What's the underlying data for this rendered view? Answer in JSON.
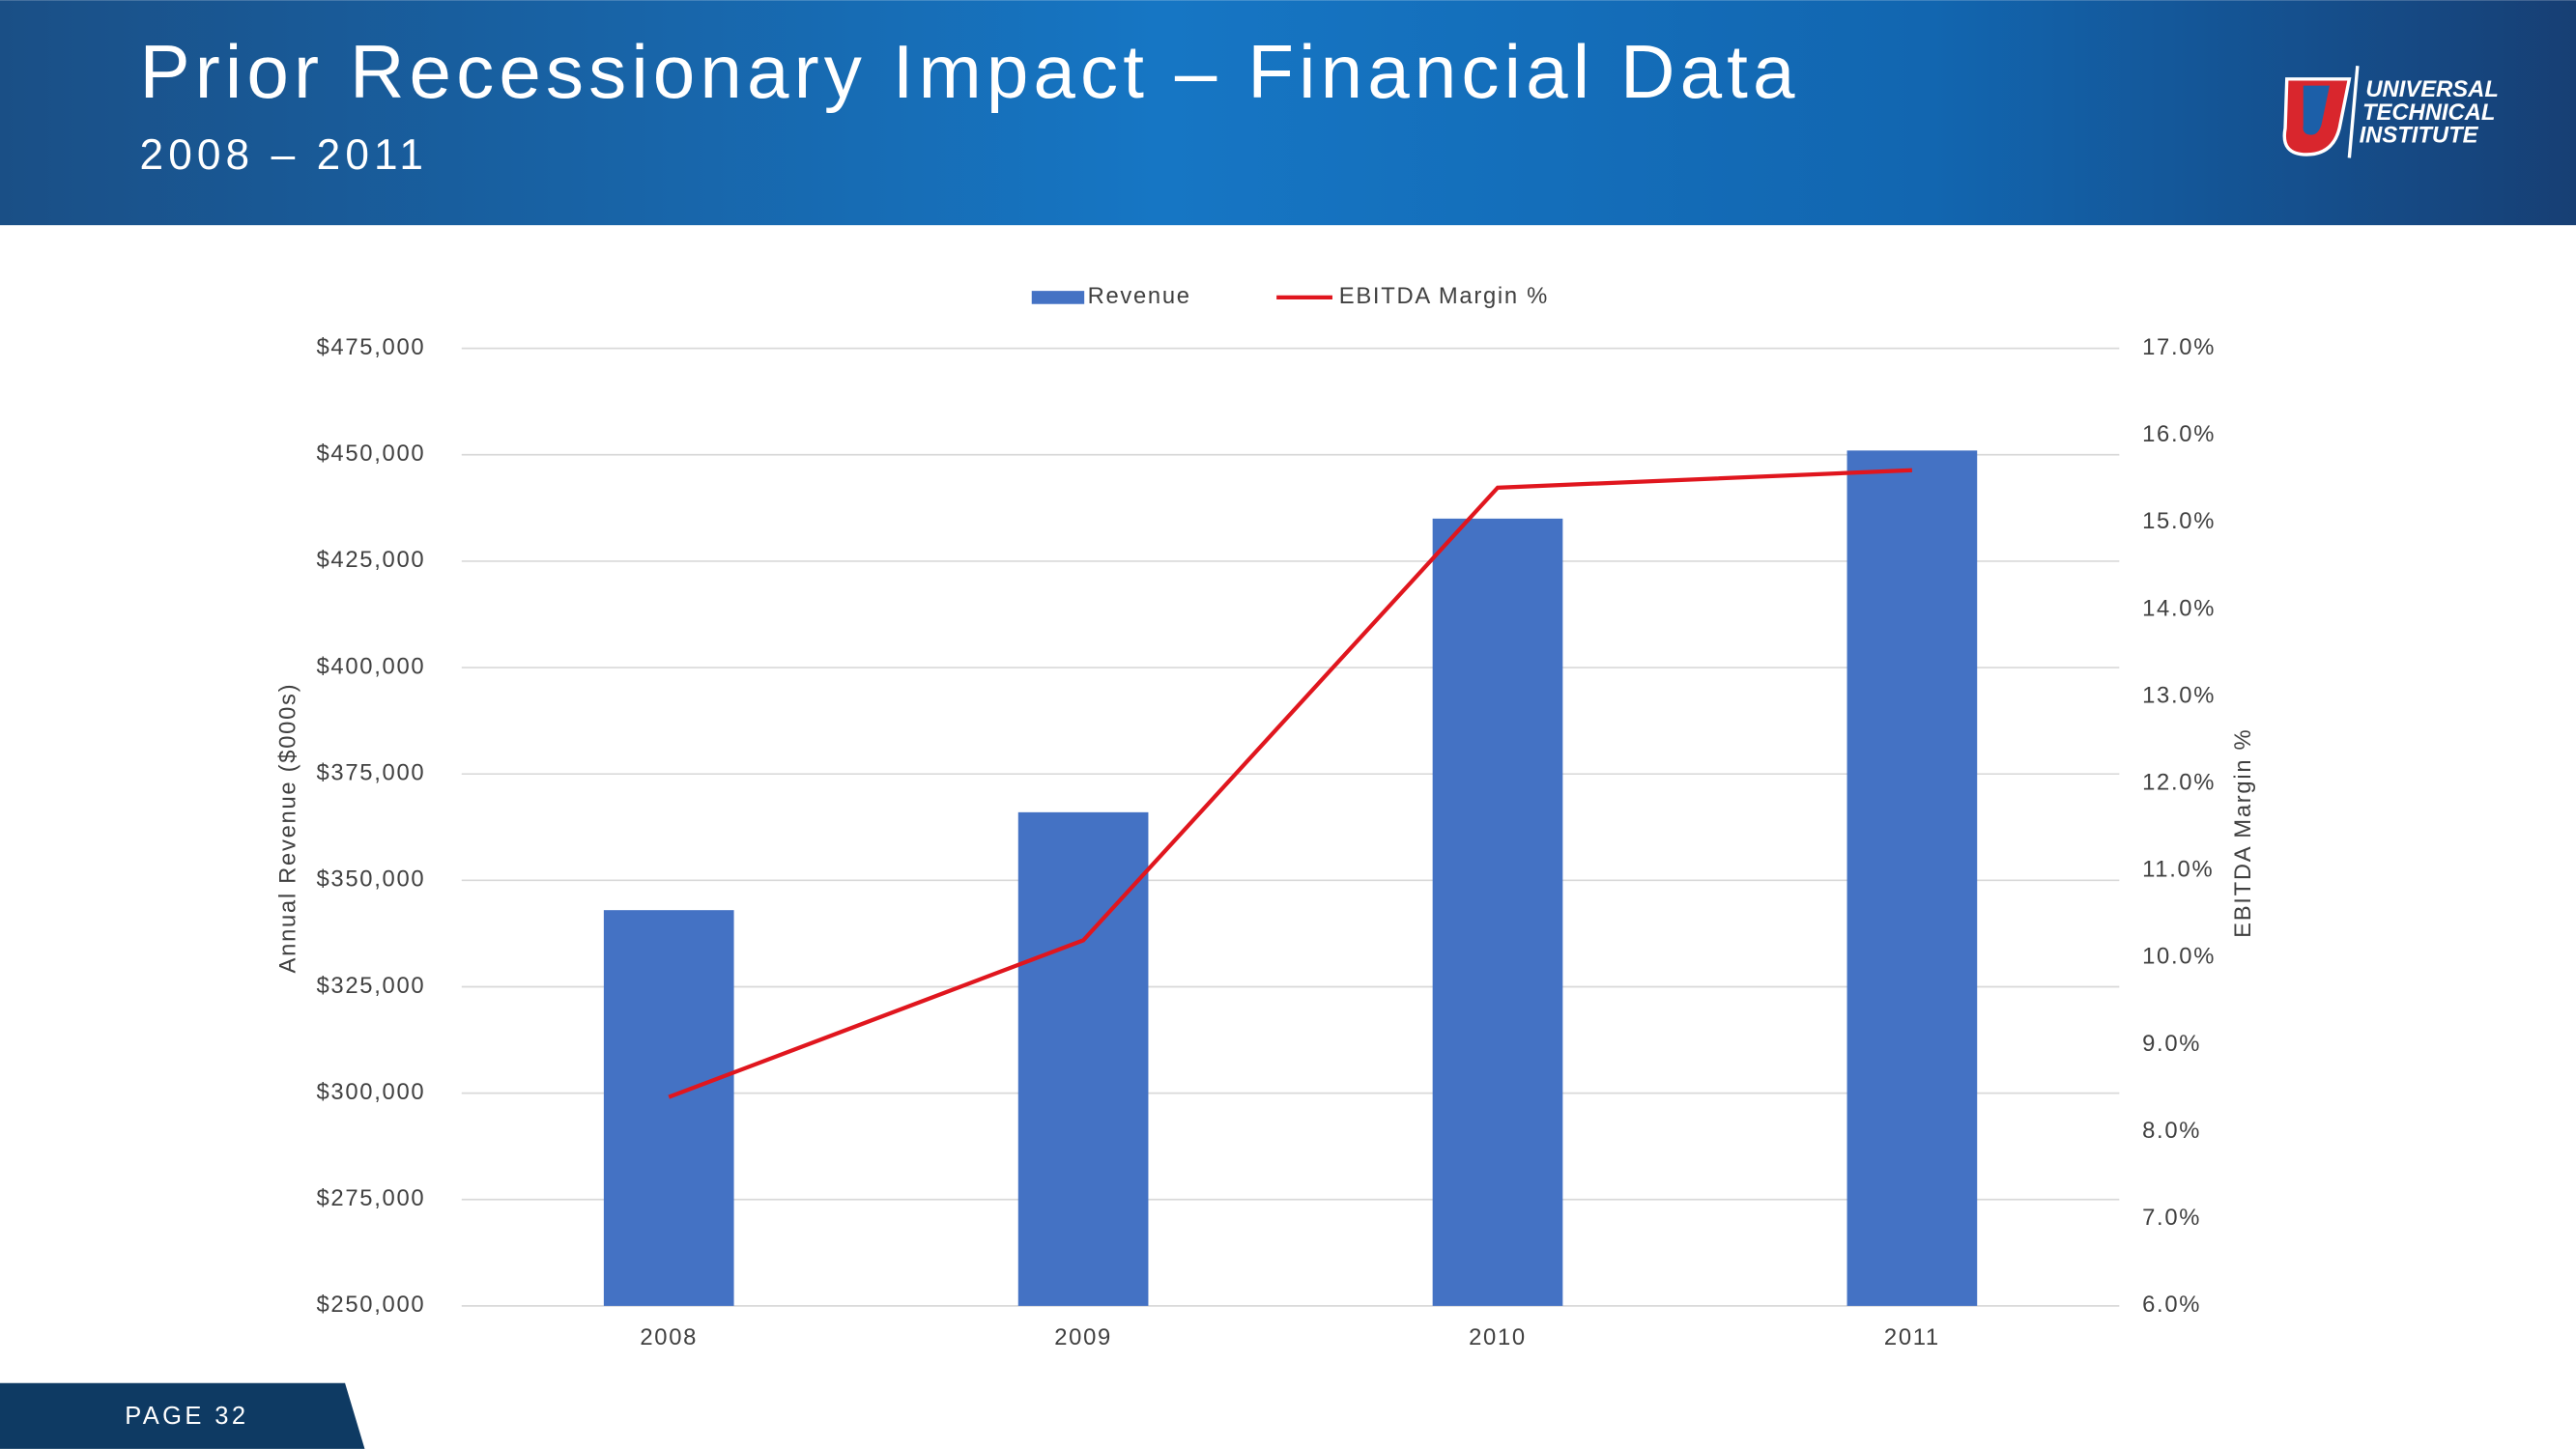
{
  "header": {
    "title": "Prior Recessionary Impact – Financial Data",
    "subtitle": "2008 – 2011",
    "logo": [
      "UNIVERSAL",
      "TECHNICAL",
      "INSTITUTE"
    ]
  },
  "footer": {
    "page": "PAGE 32"
  },
  "chart_data": {
    "type": "bar",
    "categories": [
      "2008",
      "2009",
      "2010",
      "2011"
    ],
    "series": [
      {
        "name": "Revenue",
        "type": "bar",
        "color": "#4472c4",
        "values": [
          343000,
          366000,
          435000,
          451000
        ]
      },
      {
        "name": "EBITDA Margin %",
        "type": "line",
        "color": "#e0161e",
        "axis": "y2",
        "values": [
          8.4,
          10.2,
          15.4,
          15.6
        ]
      }
    ],
    "y_label": "Annual Revenue ($000s)",
    "y2_label": "EBITDA Margin %",
    "ylim": [
      250000,
      475000
    ],
    "yticks": [
      {
        "value": 250000,
        "label": "$250,000"
      },
      {
        "value": 275000,
        "label": "$275,000"
      },
      {
        "value": 300000,
        "label": "$300,000"
      },
      {
        "value": 325000,
        "label": "$325,000"
      },
      {
        "value": 350000,
        "label": "$350,000"
      },
      {
        "value": 375000,
        "label": "$375,000"
      },
      {
        "value": 400000,
        "label": "$400,000"
      },
      {
        "value": 425000,
        "label": "$425,000"
      },
      {
        "value": 450000,
        "label": "$450,000"
      },
      {
        "value": 475000,
        "label": "$475,000"
      }
    ],
    "y2lim": [
      6,
      17
    ],
    "y2ticks": [
      {
        "value": 6,
        "label": "6.0%"
      },
      {
        "value": 7,
        "label": "7.0%"
      },
      {
        "value": 8,
        "label": "8.0%"
      },
      {
        "value": 9,
        "label": "9.0%"
      },
      {
        "value": 10,
        "label": "10.0%"
      },
      {
        "value": 11,
        "label": "11.0%"
      },
      {
        "value": 12,
        "label": "12.0%"
      },
      {
        "value": 13,
        "label": "13.0%"
      },
      {
        "value": 14,
        "label": "14.0%"
      },
      {
        "value": 15,
        "label": "15.0%"
      },
      {
        "value": 16,
        "label": "16.0%"
      },
      {
        "value": 17,
        "label": "17.0%"
      }
    ],
    "grid": true,
    "legend": "top"
  }
}
